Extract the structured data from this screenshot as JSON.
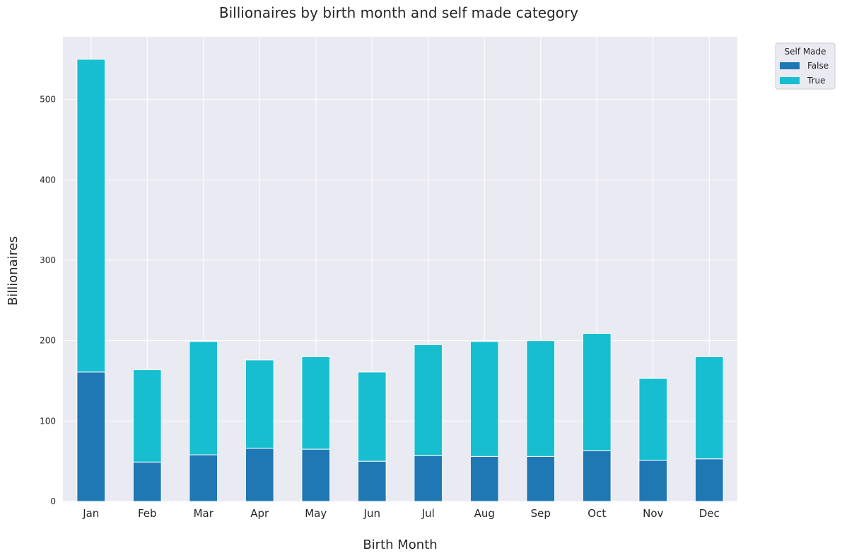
{
  "chart_data": {
    "type": "bar",
    "stacked": true,
    "title": "Billionaires by birth month and self made category",
    "xlabel": "Birth Month",
    "ylabel": "Billionaires",
    "categories": [
      "Jan",
      "Feb",
      "Mar",
      "Apr",
      "May",
      "Jun",
      "Jul",
      "Aug",
      "Sep",
      "Oct",
      "Nov",
      "Dec"
    ],
    "series": [
      {
        "name": "False",
        "color": "#1f77b4",
        "values": [
          161,
          49,
          58,
          66,
          65,
          50,
          57,
          56,
          56,
          63,
          51,
          53
        ]
      },
      {
        "name": "True",
        "color": "#17becf",
        "values": [
          389,
          115,
          141,
          110,
          115,
          111,
          138,
          143,
          144,
          146,
          102,
          127
        ]
      }
    ],
    "ylim": [
      0,
      578
    ],
    "yticks": [
      0,
      100,
      200,
      300,
      400,
      500
    ],
    "grid": true,
    "legend": {
      "title": "Self Made",
      "placement": "outside top-right"
    },
    "style": {
      "plot_background": "#eaeaf2",
      "grid_color": "#ffffff"
    }
  }
}
